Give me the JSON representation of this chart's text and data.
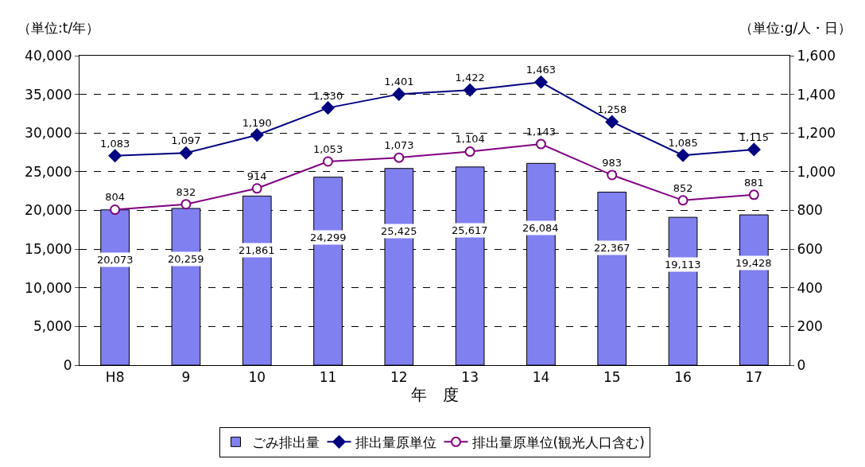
{
  "chart_data": {
    "type": "bar",
    "xlabel": "年　度",
    "ylabel": "（単位:t/年）",
    "y2label": "（単位:g/人・日）",
    "categories": [
      "H8",
      "9",
      "10",
      "11",
      "12",
      "13",
      "14",
      "15",
      "16",
      "17"
    ],
    "series": [
      {
        "name": "ごみ排出量",
        "color": "#8080f0",
        "values": [
          20073,
          20259,
          21861,
          24299,
          25425,
          25617,
          26084,
          22367,
          19113,
          19428
        ],
        "value_labels": [
          "20,073",
          "20,259",
          "21,861",
          "24,299",
          "25,425",
          "25,617",
          "26,084",
          "22,367",
          "19,113",
          "19,428"
        ]
      },
      {
        "name": "排出量原単位",
        "type": "line",
        "axis": "y2",
        "color": "#000080",
        "marker": "diamond",
        "values": [
          1083,
          1097,
          1190,
          1330,
          1401,
          1422,
          1463,
          1258,
          1085,
          1115
        ],
        "value_labels": [
          "1,083",
          "1,097",
          "1,190",
          "1,330",
          "1,401",
          "1,422",
          "1,463",
          "1,258",
          "1,085",
          "1,115"
        ]
      },
      {
        "name": "排出量原単位(観光人口含む)",
        "type": "line",
        "axis": "y2",
        "color": "#800080",
        "marker": "circle",
        "values": [
          804,
          832,
          914,
          1053,
          1073,
          1104,
          1143,
          983,
          852,
          881
        ],
        "value_labels": [
          "804",
          "832",
          "914",
          "1,053",
          "1,073",
          "1,104",
          "1,143",
          "983",
          "852",
          "881"
        ]
      }
    ],
    "ylim": [
      0,
      40000
    ],
    "yticks": [
      {
        "value": 0,
        "label": "0"
      },
      {
        "value": 5000,
        "label": "5,000"
      },
      {
        "value": 10000,
        "label": "10,000"
      },
      {
        "value": 15000,
        "label": "15,000"
      },
      {
        "value": 20000,
        "label": "20,000"
      },
      {
        "value": 25000,
        "label": "25,000"
      },
      {
        "value": 30000,
        "label": "30,000"
      },
      {
        "value": 35000,
        "label": "35,000"
      },
      {
        "value": 40000,
        "label": "40,000"
      }
    ],
    "y2lim": [
      0,
      1600
    ],
    "y2ticks": [
      {
        "value": 0,
        "label": "0"
      },
      {
        "value": 200,
        "label": "200"
      },
      {
        "value": 400,
        "label": "400"
      },
      {
        "value": 600,
        "label": "600"
      },
      {
        "value": 800,
        "label": "800"
      },
      {
        "value": 1000,
        "label": "1,000"
      },
      {
        "value": 1200,
        "label": "1,200"
      },
      {
        "value": 1400,
        "label": "1,400"
      },
      {
        "value": 1600,
        "label": "1,600"
      }
    ],
    "grid": "y",
    "legend": "bottom"
  }
}
